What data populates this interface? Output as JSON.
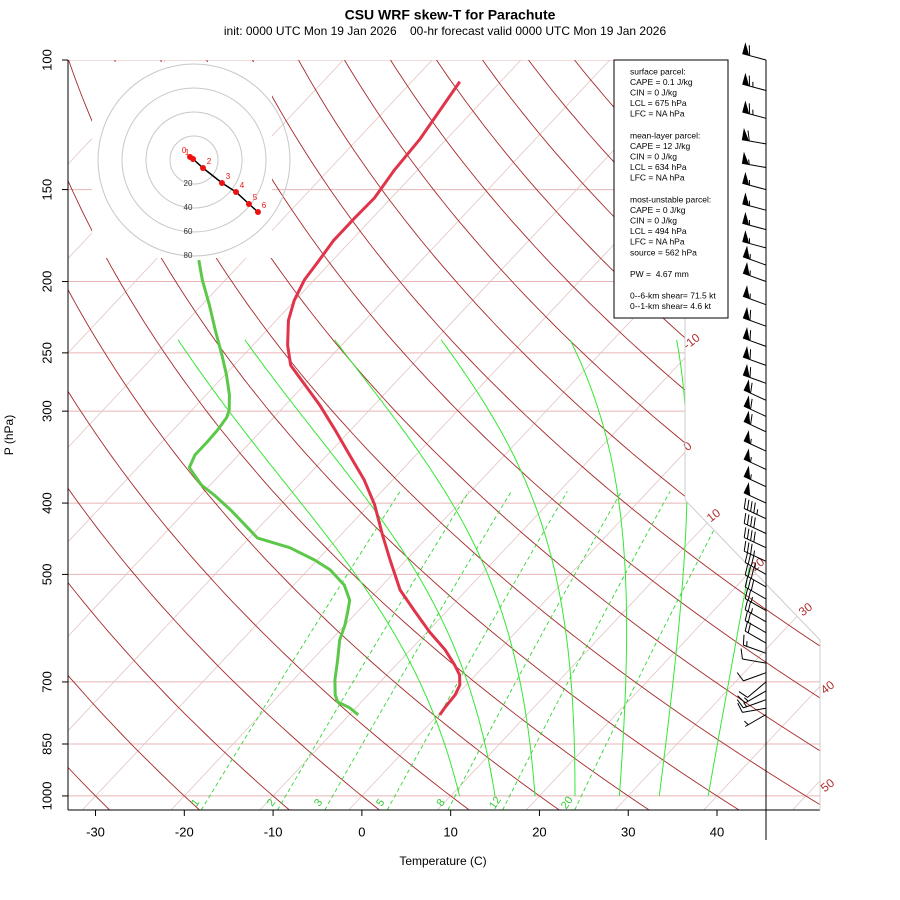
{
  "chart_data": {
    "type": "skewt",
    "title": "CSU WRF skew-T for Parachute",
    "subtitle": "init: 0000 UTC Mon 19 Jan 2026    00-hr forecast valid 0000 UTC Mon 19 Jan 2026",
    "x_label": "Temperature (C)",
    "y_label": "P (hPa)",
    "xlim": [
      -33.1,
      51.6
    ],
    "xticks": [
      -30,
      -20,
      -10,
      0,
      10,
      20,
      30,
      40
    ],
    "ylim": [
      1045,
      100
    ],
    "yticks": [
      100,
      150,
      200,
      250,
      300,
      400,
      500,
      700,
      850,
      1000
    ],
    "isotherms": [
      -100,
      -90,
      -80,
      -70,
      -60,
      -50,
      -40,
      -30,
      -20,
      -10,
      0,
      10,
      20,
      30,
      40,
      50
    ],
    "isotherm_labels": [
      -10,
      0,
      10,
      20,
      30,
      40,
      50
    ],
    "dry_adiabats": [
      -40,
      -30,
      -20,
      -10,
      0,
      10,
      20,
      30,
      40,
      50,
      60,
      70,
      80,
      90,
      100,
      110,
      120,
      130,
      140,
      150,
      160,
      170,
      180
    ],
    "moist_adiabats": [
      11,
      15,
      19.5,
      24,
      29,
      33.5,
      39
    ],
    "mixing_ratios": [
      1,
      2,
      3,
      5,
      8,
      12,
      20
    ],
    "series": [
      {
        "color": "#e0344a",
        "pressure": [
          776,
          759,
          729,
          707,
          685,
          664,
          633,
          599,
          562,
          525,
          478,
          442,
          402,
          372,
          344,
          318,
          294,
          276,
          260,
          244,
          226,
          212,
          199,
          188,
          176,
          164,
          154,
          141,
          128,
          107
        ],
        "values": [
          0.2,
          0.0,
          -0.2,
          -0.7,
          -1.8,
          -3.4,
          -6.1,
          -9.7,
          -13.5,
          -17.5,
          -21.8,
          -25.3,
          -29.4,
          -33.2,
          -37.5,
          -41.8,
          -46.2,
          -50.0,
          -53.6,
          -56.1,
          -58.6,
          -60.1,
          -61.1,
          -61.5,
          -62.0,
          -62.0,
          -61.9,
          -62.6,
          -63.0,
          -64.6
        ]
      },
      {
        "color": "#5cc84a",
        "pressure": [
          776,
          759,
          745,
          729,
          696,
          654,
          614,
          586,
          562,
          542,
          517,
          493,
          478,
          460,
          446,
          428,
          409,
          390,
          378,
          358,
          344,
          331,
          318,
          306,
          299,
          285,
          268,
          252,
          233,
          215,
          199,
          187
        ],
        "values": [
          -9.0,
          -10.7,
          -12.7,
          -13.7,
          -15.3,
          -17.1,
          -19.0,
          -20.0,
          -21.1,
          -22.1,
          -24.3,
          -27.5,
          -30.3,
          -34.4,
          -39.1,
          -41.9,
          -45.0,
          -48.5,
          -51.0,
          -54.2,
          -54.9,
          -54.9,
          -55.0,
          -55.3,
          -55.8,
          -57.4,
          -59.8,
          -62.4,
          -65.8,
          -69.2,
          -72.6,
          -75.1
        ]
      }
    ],
    "wind": {
      "color": "#000000",
      "pressure": [
        100,
        110,
        120,
        130,
        140,
        150,
        160,
        170,
        180,
        190,
        200,
        215,
        230,
        245,
        260,
        275,
        290,
        305,
        320,
        340,
        360,
        380,
        400,
        420,
        440,
        460,
        480,
        500,
        520,
        540,
        560,
        580,
        600,
        620,
        640,
        660,
        680,
        700,
        720,
        740,
        760,
        775
      ],
      "speed": [
        60,
        65,
        65,
        60,
        55,
        55,
        55,
        55,
        55,
        55,
        55,
        55,
        60,
        60,
        60,
        60,
        60,
        60,
        60,
        55,
        55,
        55,
        50,
        45,
        40,
        40,
        35,
        35,
        30,
        30,
        25,
        25,
        20,
        20,
        15,
        10,
        10,
        10,
        15,
        15,
        10,
        5
      ],
      "direction": [
        285,
        285,
        285,
        280,
        280,
        285,
        285,
        285,
        285,
        290,
        290,
        290,
        290,
        290,
        290,
        290,
        295,
        295,
        295,
        295,
        295,
        295,
        295,
        295,
        295,
        295,
        295,
        300,
        300,
        300,
        300,
        300,
        300,
        300,
        290,
        280,
        250,
        230,
        240,
        250,
        260,
        240
      ]
    },
    "hodograph": {
      "color": "#ee1111",
      "rings": [
        20,
        40,
        60,
        80
      ],
      "heights": [
        0,
        1,
        2,
        3,
        4,
        5,
        6
      ],
      "u": [
        -3.3,
        -0.8,
        7.5,
        23.3,
        35,
        45.8,
        53.3
      ],
      "v": [
        2.5,
        0.8,
        -6.7,
        -19.2,
        -26.7,
        -36.7,
        -43.3
      ]
    },
    "info_box": [
      [
        "surface parcel:",
        "CAPE = 0.1 J/kg",
        "CIN = 0 J/kg",
        "LCL = 675 hPa",
        "LFC = NA hPa"
      ],
      [
        "mean-layer parcel:",
        "CAPE = 12 J/kg",
        "CIN = 0 J/kg",
        "LCL = 634 hPa",
        "LFC = NA hPa"
      ],
      [
        "most-unstable parcel:",
        "CAPE = 0 J/kg",
        "CIN = 0 J/kg",
        "LCL = 494 hPa",
        "LFC = NA hPa",
        "source = 562 hPa"
      ],
      [
        "PW =  4.67 mm"
      ],
      [
        "0--6-km shear= 71.5 kt",
        "0--1-km shear= 4.6 kt"
      ]
    ]
  }
}
